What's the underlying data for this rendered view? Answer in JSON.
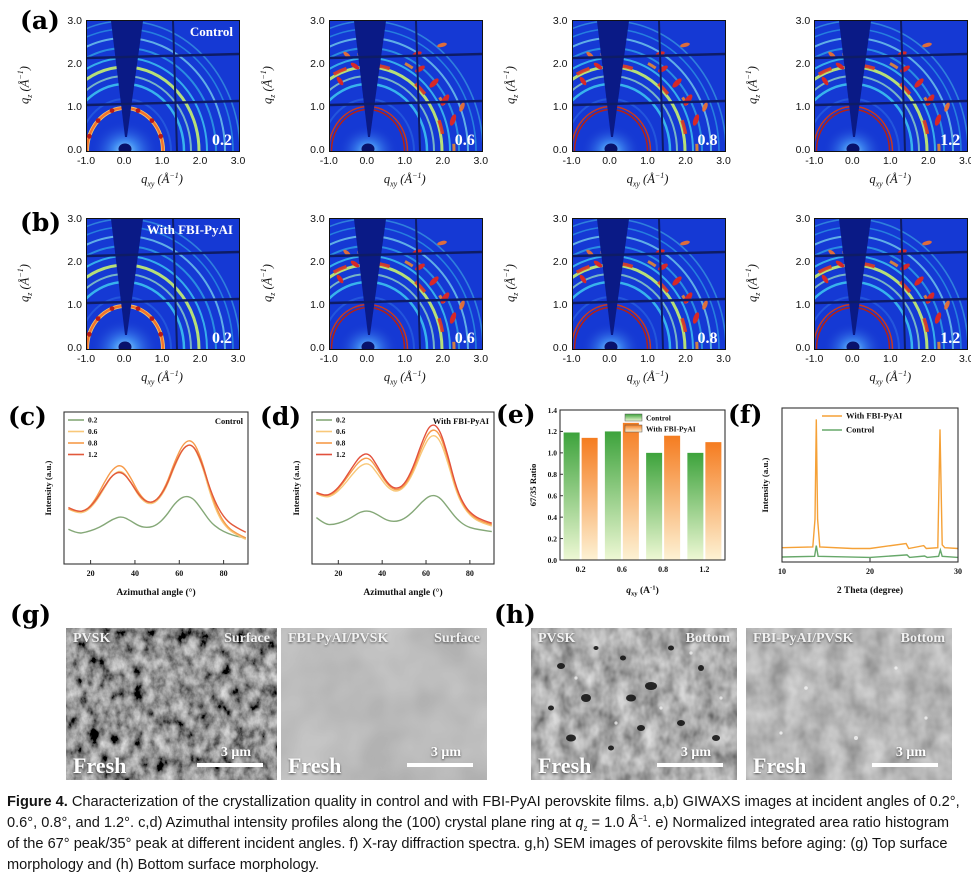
{
  "figure_caption": {
    "label": "Figure 4.",
    "t1": " Characterization of the crystallization quality in control and with FBI-PyAI perovskite films. a,b) GIWAXS images at incident angles of 0.2°, 0.6°, 0.8°, and 1.2°. c,d) Azimuthal intensity profiles along the (100) crystal plane ring at ",
    "q": "q",
    "q_sub": "z",
    "t2": " = 1.0 Å",
    "sup": "−1",
    "t3": ". e) Normalized integrated area ratio histogram of the 67° peak/35° peak at different incident angles. f) X-ray diffraction spectra. g,h) SEM images of perovskite films before aging: (g) Top surface morphology and (h) Bottom surface morphology."
  },
  "giwaxs": {
    "y_ticks": [
      "3.0",
      "2.0",
      "1.0",
      "0.0"
    ],
    "x_ticks": [
      "-1.0",
      "0.0",
      "1.0",
      "2.0",
      "3.0"
    ],
    "x_axis": {
      "q": "q",
      "sub": "xy",
      "unit": " (Å",
      "sup": "−1",
      "close": ")"
    },
    "y_axis": {
      "q": "q",
      "sub": "z",
      "unit": " (Å",
      "sup": "−1",
      "close": ")"
    },
    "rows": [
      {
        "panel_label": "(a)",
        "condition": "Control",
        "angles": [
          "0.2",
          "0.6",
          "0.8",
          "1.2"
        ]
      },
      {
        "panel_label": "(b)",
        "condition": "With FBI-PyAI",
        "angles": [
          "0.2",
          "0.6",
          "0.8",
          "1.2"
        ]
      }
    ]
  },
  "panel_labels": {
    "c": "(c)",
    "d": "(d)",
    "e": "(e)",
    "f": "(f)",
    "g": "(g)",
    "h": "(h)"
  },
  "chart_data": [
    {
      "id": "chart-c",
      "type": "line",
      "corner_label": "Control",
      "xlabel": "Azimuthal angle (°)",
      "ylabel": "Intensity (a.u.)",
      "xlim": [
        8,
        91
      ],
      "ylim": [
        0,
        1.05
      ],
      "xticks": [
        20,
        40,
        60,
        80
      ],
      "x": [
        10,
        14,
        18,
        22,
        26,
        30,
        34,
        38,
        42,
        46,
        50,
        54,
        58,
        62,
        66,
        70,
        74,
        78,
        82,
        86,
        90
      ],
      "series": [
        {
          "name": "0.2",
          "color": "#85a878",
          "values": [
            0.24,
            0.21,
            0.22,
            0.24,
            0.27,
            0.31,
            0.33,
            0.3,
            0.26,
            0.25,
            0.27,
            0.33,
            0.42,
            0.47,
            0.46,
            0.38,
            0.29,
            0.24,
            0.21,
            0.19,
            0.18
          ]
        },
        {
          "name": "0.6",
          "color": "#f8c879",
          "values": [
            0.38,
            0.35,
            0.36,
            0.42,
            0.52,
            0.62,
            0.65,
            0.57,
            0.46,
            0.41,
            0.43,
            0.52,
            0.68,
            0.81,
            0.83,
            0.7,
            0.48,
            0.32,
            0.24,
            0.2,
            0.17
          ]
        },
        {
          "name": "0.8",
          "color": "#f79b4a",
          "values": [
            0.38,
            0.36,
            0.37,
            0.44,
            0.56,
            0.66,
            0.69,
            0.6,
            0.48,
            0.42,
            0.44,
            0.54,
            0.71,
            0.84,
            0.86,
            0.73,
            0.5,
            0.34,
            0.25,
            0.21,
            0.18
          ]
        },
        {
          "name": "1.2",
          "color": "#e2593b",
          "values": [
            0.39,
            0.36,
            0.37,
            0.43,
            0.53,
            0.62,
            0.64,
            0.57,
            0.47,
            0.42,
            0.44,
            0.53,
            0.69,
            0.81,
            0.83,
            0.71,
            0.51,
            0.37,
            0.29,
            0.25,
            0.22
          ]
        }
      ]
    },
    {
      "id": "chart-d",
      "type": "line",
      "corner_label": "With FBI-PyAI",
      "xlabel": "Azimuthal angle (°)",
      "ylabel": "Intensity (a.u.)",
      "xlim": [
        8,
        91
      ],
      "ylim": [
        0,
        1.08
      ],
      "xticks": [
        20,
        40,
        60,
        80
      ],
      "x": [
        10,
        14,
        18,
        22,
        26,
        30,
        34,
        38,
        42,
        46,
        50,
        54,
        58,
        62,
        66,
        70,
        74,
        78,
        82,
        86,
        90
      ],
      "series": [
        {
          "name": "0.2",
          "color": "#85a878",
          "values": [
            0.33,
            0.28,
            0.28,
            0.3,
            0.33,
            0.37,
            0.38,
            0.35,
            0.31,
            0.3,
            0.32,
            0.37,
            0.44,
            0.49,
            0.48,
            0.4,
            0.32,
            0.27,
            0.25,
            0.24,
            0.23
          ]
        },
        {
          "name": "0.6",
          "color": "#f8c879",
          "values": [
            0.5,
            0.47,
            0.49,
            0.55,
            0.63,
            0.7,
            0.72,
            0.64,
            0.55,
            0.51,
            0.54,
            0.64,
            0.8,
            0.92,
            0.9,
            0.72,
            0.5,
            0.38,
            0.32,
            0.29,
            0.27
          ]
        },
        {
          "name": "0.8",
          "color": "#f79b4a",
          "values": [
            0.5,
            0.48,
            0.5,
            0.57,
            0.66,
            0.74,
            0.76,
            0.67,
            0.57,
            0.52,
            0.55,
            0.66,
            0.83,
            0.96,
            0.94,
            0.75,
            0.52,
            0.39,
            0.33,
            0.3,
            0.28
          ]
        },
        {
          "name": "1.2",
          "color": "#e2503c",
          "values": [
            0.51,
            0.48,
            0.51,
            0.58,
            0.68,
            0.77,
            0.79,
            0.69,
            0.58,
            0.53,
            0.56,
            0.68,
            0.86,
            1.0,
            0.97,
            0.77,
            0.53,
            0.4,
            0.34,
            0.31,
            0.29
          ]
        }
      ]
    },
    {
      "id": "chart-e",
      "type": "bar",
      "ylabel": "67/35 Ratio",
      "xlabel_parts": [
        [
          "i",
          "q"
        ],
        [
          "sub",
          "xy"
        ],
        [
          "n",
          " (A"
        ],
        [
          "sup",
          "-1"
        ],
        [
          "n",
          ")"
        ]
      ],
      "categories": [
        "0.2",
        "0.6",
        "0.8",
        "1.2"
      ],
      "ylim": [
        0,
        1.4
      ],
      "yticks": [
        "0.0",
        "0.2",
        "0.4",
        "0.6",
        "0.8",
        "1.0",
        "1.2",
        "1.4"
      ],
      "series": [
        {
          "name": "Control",
          "color_top": "#3da33c",
          "color_bottom": "#eef8d4",
          "values": [
            1.19,
            1.2,
            1.0,
            1.0
          ]
        },
        {
          "name": "With FBI-PyAI",
          "color_top": "#f57c20",
          "color_bottom": "#fdf2d4",
          "values": [
            1.14,
            1.28,
            1.16,
            1.1
          ]
        }
      ]
    },
    {
      "id": "chart-f",
      "type": "xy",
      "ylabel": "Intensity (a.u.)",
      "xlabel": "2 Theta (degree)",
      "xlim": [
        10,
        30
      ],
      "ylim": [
        0,
        1.08
      ],
      "xticks": [
        10,
        20,
        30
      ],
      "series": [
        {
          "name": "With FBI-PyAI",
          "color": "#f5a137",
          "points": [
            [
              10,
              0.1
            ],
            [
              13.5,
              0.105
            ],
            [
              13.75,
              0.3
            ],
            [
              13.9,
              1.0
            ],
            [
              14.05,
              0.3
            ],
            [
              14.3,
              0.105
            ],
            [
              18,
              0.095
            ],
            [
              20,
              0.095
            ],
            [
              24.1,
              0.13
            ],
            [
              24.4,
              0.095
            ],
            [
              26.1,
              0.115
            ],
            [
              26.4,
              0.095
            ],
            [
              27.7,
              0.1
            ],
            [
              27.95,
              0.93
            ],
            [
              28.2,
              0.12
            ],
            [
              28.5,
              0.1
            ],
            [
              30,
              0.095
            ]
          ]
        },
        {
          "name": "Control",
          "color": "#67a86a",
          "points": [
            [
              10,
              0.035
            ],
            [
              13.7,
              0.04
            ],
            [
              13.9,
              0.115
            ],
            [
              14.1,
              0.04
            ],
            [
              20,
              0.032
            ],
            [
              24.2,
              0.05
            ],
            [
              24.5,
              0.032
            ],
            [
              26.2,
              0.042
            ],
            [
              26.5,
              0.032
            ],
            [
              27.8,
              0.04
            ],
            [
              28.0,
              0.085
            ],
            [
              28.2,
              0.04
            ],
            [
              30,
              0.032
            ]
          ]
        }
      ]
    }
  ],
  "sem": {
    "images": [
      {
        "tl": "PVSK",
        "tr": "Surface",
        "bl": "Fresh",
        "scale": "3 μm"
      },
      {
        "tl": "FBI-PyAI/PVSK",
        "tr": "Surface",
        "bl": "Fresh",
        "scale": "3 μm"
      },
      {
        "tl": "PVSK",
        "tr": "Bottom",
        "bl": "Fresh",
        "scale": "3 μm"
      },
      {
        "tl": "FBI-PyAI/PVSK",
        "tr": "Bottom",
        "bl": "Fresh",
        "scale": "3 μm"
      }
    ]
  }
}
